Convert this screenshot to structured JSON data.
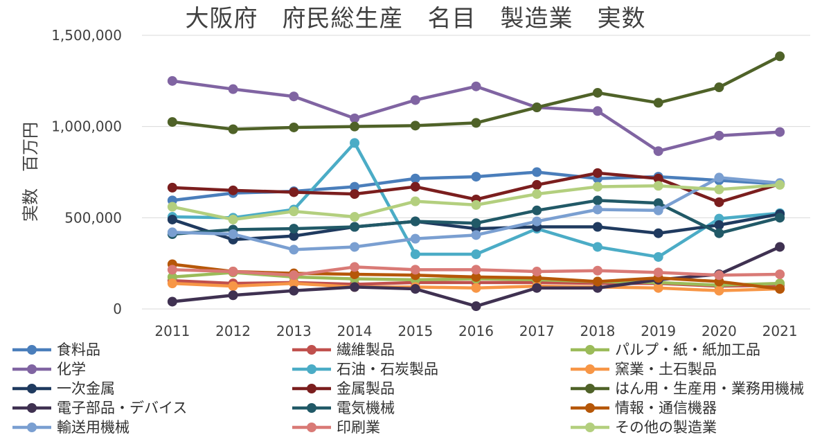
{
  "chart_data": {
    "type": "line",
    "title": "大阪府　府民総生産　名目　製造業　実数",
    "xlabel": "",
    "ylabel": "実数　百万円",
    "ylim": [
      0,
      1500000
    ],
    "yticks": [
      0,
      500000,
      1000000,
      1500000
    ],
    "ytick_labels": [
      "0",
      "500,000",
      "1,000,000",
      "1,500,000"
    ],
    "x": [
      "2011",
      "2012",
      "2013",
      "2014",
      "2015",
      "2016",
      "2017",
      "2018",
      "2019",
      "2020",
      "2021"
    ],
    "grid": true,
    "legend_position": "bottom",
    "series": [
      {
        "name": "食料品",
        "color": "#4a7ebb",
        "values": [
          595000,
          635000,
          645000,
          670000,
          715000,
          725000,
          750000,
          715000,
          725000,
          705000,
          685000
        ]
      },
      {
        "name": "繊維製品",
        "color": "#c0504d",
        "values": [
          155000,
          140000,
          145000,
          135000,
          145000,
          145000,
          145000,
          140000,
          140000,
          125000,
          130000
        ]
      },
      {
        "name": "パルプ・紙・紙加工品",
        "color": "#9bbb59",
        "values": [
          175000,
          200000,
          175000,
          165000,
          160000,
          165000,
          160000,
          150000,
          145000,
          130000,
          140000
        ]
      },
      {
        "name": "化学",
        "color": "#8064a2",
        "values": [
          1250000,
          1205000,
          1165000,
          1045000,
          1145000,
          1220000,
          1105000,
          1085000,
          865000,
          950000,
          970000
        ]
      },
      {
        "name": "石油・石炭製品",
        "color": "#4bacc6",
        "values": [
          505000,
          500000,
          545000,
          910000,
          300000,
          300000,
          440000,
          340000,
          285000,
          495000,
          525000
        ]
      },
      {
        "name": "窯業・土石製品",
        "color": "#f79646",
        "values": [
          140000,
          125000,
          140000,
          120000,
          120000,
          115000,
          125000,
          120000,
          115000,
          100000,
          110000
        ]
      },
      {
        "name": "一次金属",
        "color": "#1f3a5f",
        "values": [
          490000,
          380000,
          400000,
          450000,
          480000,
          440000,
          450000,
          450000,
          415000,
          460000,
          520000
        ]
      },
      {
        "name": "金属製品",
        "color": "#7b1e1e",
        "values": [
          665000,
          650000,
          640000,
          630000,
          670000,
          600000,
          680000,
          745000,
          715000,
          585000,
          685000
        ]
      },
      {
        "name": "はん用・生産用・業務用機械",
        "color": "#4f6228",
        "values": [
          1025000,
          985000,
          995000,
          1000000,
          1005000,
          1020000,
          1105000,
          1185000,
          1130000,
          1215000,
          1385000
        ]
      },
      {
        "name": "電子部品・デバイス",
        "color": "#3f3151",
        "values": [
          40000,
          75000,
          100000,
          120000,
          110000,
          15000,
          115000,
          115000,
          160000,
          190000,
          340000
        ]
      },
      {
        "name": "電気機械",
        "color": "#215967",
        "values": [
          410000,
          435000,
          440000,
          450000,
          480000,
          470000,
          540000,
          595000,
          580000,
          415000,
          500000
        ]
      },
      {
        "name": "情報・通信機器",
        "color": "#b65708",
        "values": [
          245000,
          205000,
          195000,
          190000,
          185000,
          175000,
          170000,
          150000,
          170000,
          150000,
          110000
        ]
      },
      {
        "name": "輸送用機械",
        "color": "#7a9fd1",
        "values": [
          420000,
          410000,
          325000,
          340000,
          385000,
          405000,
          480000,
          545000,
          540000,
          720000,
          690000
        ]
      },
      {
        "name": "印刷業",
        "color": "#d97a76",
        "values": [
          215000,
          205000,
          185000,
          230000,
          215000,
          215000,
          205000,
          210000,
          200000,
          185000,
          190000
        ]
      },
      {
        "name": "その他の製造業",
        "color": "#b3cf7e",
        "values": [
          560000,
          490000,
          535000,
          505000,
          590000,
          570000,
          630000,
          670000,
          675000,
          655000,
          680000
        ]
      }
    ]
  }
}
